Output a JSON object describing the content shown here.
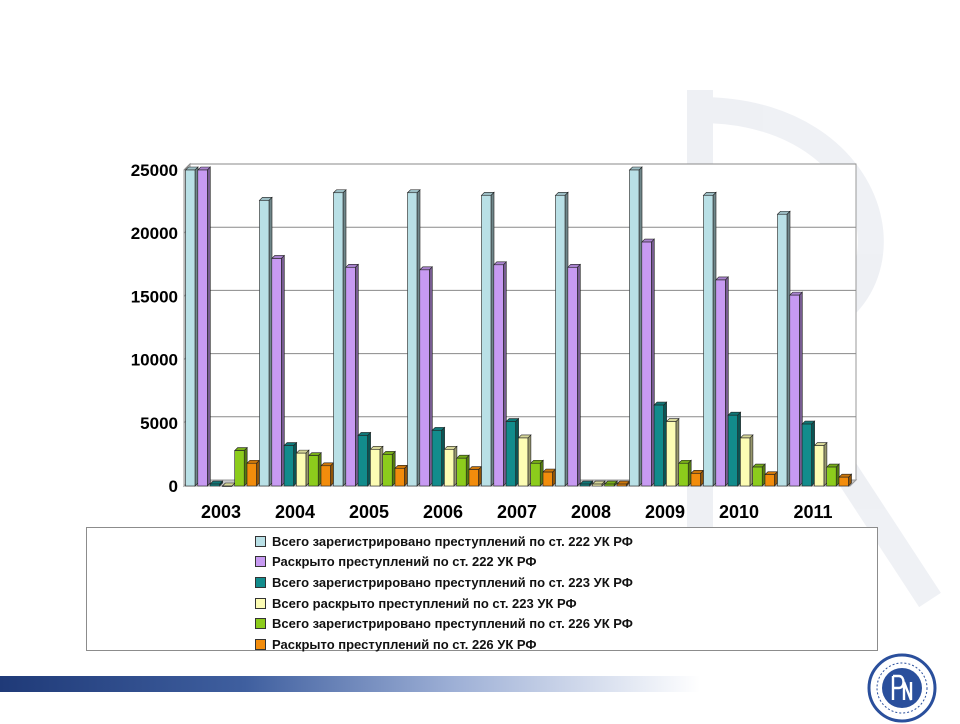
{
  "chart_data": {
    "type": "bar",
    "title": "",
    "xlabel": "",
    "ylabel": "",
    "ylim": [
      0,
      25000
    ],
    "yticks": [
      "0",
      "5000",
      "10000",
      "15000",
      "20000",
      "25000"
    ],
    "categories": [
      "2003",
      "2004",
      "2005",
      "2006",
      "2007",
      "2008",
      "2009",
      "2010",
      "2011"
    ],
    "grid": true,
    "legend_position": "bottom",
    "series": [
      {
        "name": "Всего зарегистрировано преступлений по ст. 222 УК РФ",
        "color": "#b9e0e6",
        "values": [
          25000,
          22600,
          23200,
          23200,
          23000,
          23000,
          25000,
          23000,
          21500
        ]
      },
      {
        "name": "Раскрыто преступлений по ст. 222 УК РФ",
        "color": "#c79af2",
        "values": [
          25000,
          18000,
          17300,
          17100,
          17500,
          17300,
          19300,
          16300,
          15100
        ]
      },
      {
        "name": "Всего зарегистрировано преступлений по ст. 223 УК РФ",
        "color": "#128c8c",
        "values": [
          150,
          3200,
          4000,
          4400,
          5100,
          150,
          6400,
          5600,
          4900
        ]
      },
      {
        "name": "Всего раскрыто преступлений по ст. 223 УК РФ",
        "color": "#fcfcb4",
        "values": [
          0,
          2600,
          2900,
          2900,
          3800,
          150,
          5100,
          3800,
          3200
        ]
      },
      {
        "name": "Всего зарегистрировано преступлений по ст. 226 УК РФ",
        "color": "#8ccc1c",
        "values": [
          2800,
          2400,
          2500,
          2200,
          1800,
          150,
          1800,
          1500,
          1500
        ]
      },
      {
        "name": "Раскрыто преступлений по ст. 226 УК РФ",
        "color": "#f28c0c",
        "values": [
          1800,
          1600,
          1400,
          1300,
          1100,
          150,
          1000,
          900,
          700
        ]
      }
    ]
  }
}
